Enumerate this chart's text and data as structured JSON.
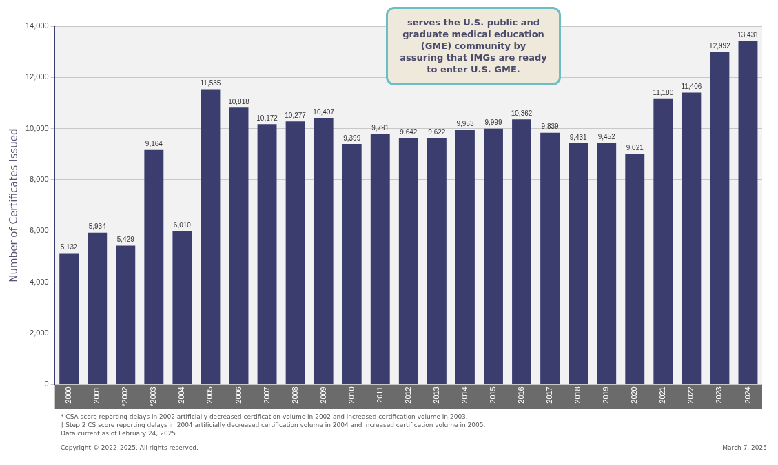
{
  "chart_data": {
    "type": "bar",
    "ylabel": "Number of Certificates Issued",
    "categories": [
      "2000",
      "2001",
      "*2002",
      "*2003",
      "2004",
      "2005",
      "2006",
      "2007",
      "2008",
      "2009",
      "2010",
      "2011",
      "2012",
      "2013",
      "2014",
      "2015",
      "2016",
      "2017",
      "2018",
      "2019",
      "2020",
      "2021",
      "2022",
      "2023",
      "2024"
    ],
    "values": [
      5132,
      5934,
      5429,
      9164,
      6010,
      11535,
      10818,
      10172,
      10277,
      10407,
      9399,
      9791,
      9642,
      9622,
      9953,
      9999,
      10362,
      9839,
      9431,
      9452,
      9021,
      11180,
      11406,
      12992,
      13431
    ],
    "color": "#3b3d6e",
    "ylim": [
      0,
      14000
    ],
    "yticks": [
      {
        "value": 0,
        "label": "0"
      },
      {
        "value": 2000,
        "label": "2,000"
      },
      {
        "value": 4000,
        "label": "4,000"
      },
      {
        "value": 6000,
        "label": "6,000"
      },
      {
        "value": 8000,
        "label": "8,000"
      },
      {
        "value": 10000,
        "label": "10,000"
      },
      {
        "value": 12000,
        "label": "12,000"
      },
      {
        "value": 14000,
        "label": "14,000"
      }
    ],
    "grid": "y",
    "legend": false,
    "value_labels": [
      "5,132",
      "5,934",
      "5,429",
      "9,164",
      "6,010",
      "11,535",
      "10,818",
      "10,172",
      "10,277",
      "10,407",
      "9,399",
      "9,791",
      "9,642",
      "9,622",
      "9,953",
      "9,999",
      "10,362",
      "9,839",
      "9,431",
      "9,452",
      "9,021",
      "11,180",
      "11,406",
      "12,992",
      "13,431"
    ],
    "annotations": [
      "serves the U.S. public and graduate medical education (GME) community by assuring that IMGs are ready to enter U.S. GME.",
      "* CSA score reporting delays in 2002 artificially decreased certification volume in 2002 and increased certification volume in 2003.",
      "† Step 2 CS score reporting delays in 2004 artificially decreased certification volume in 2004 and increased certification volume in 2005.",
      "Data current as of February 24, 2025.",
      "Copyright © 2022–2025. All rights reserved.",
      "March 7, 2025"
    ]
  }
}
